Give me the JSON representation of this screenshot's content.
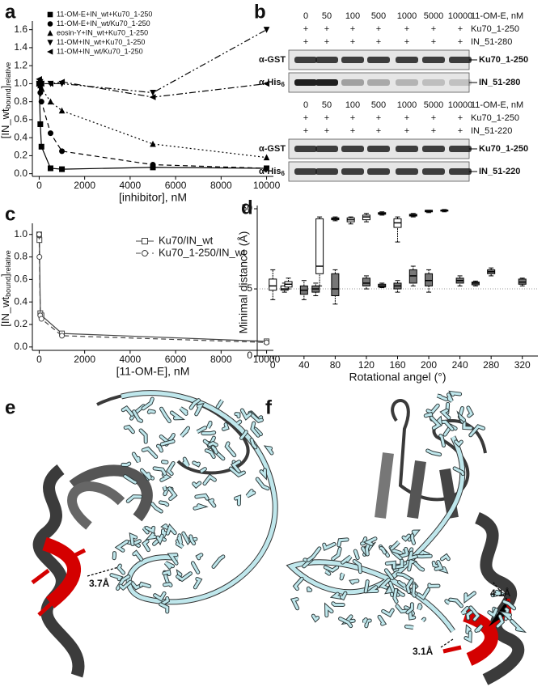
{
  "panel_labels": [
    "a",
    "b",
    "c",
    "d",
    "e",
    "f"
  ],
  "chart_data": [
    {
      "type": "scatter",
      "x_label": "[inhibitor], nM",
      "y_label": [
        "[IN_wt",
        "bound",
        "]",
        "relative"
      ],
      "x": [
        0,
        50,
        100,
        500,
        1000,
        5000,
        10000
      ],
      "xlim": [
        -300,
        10300
      ],
      "xticks": [
        0,
        2000,
        4000,
        6000,
        8000,
        10000
      ],
      "ylim": [
        -0.03,
        1.66
      ],
      "yticks": [
        {
          "value": 0,
          "label": "0.0"
        },
        0.2,
        0.4,
        0.6,
        0.8,
        {
          "value": 1,
          "label": "1.0"
        },
        1.2,
        1.4,
        1.6
      ],
      "legend": "top-left",
      "series": [
        {
          "name": "11-OM-E+IN_wt+Ku70_1-250",
          "color": "#000000",
          "marker": "square",
          "line": "solid",
          "values": [
            1.0,
            0.55,
            0.3,
            0.06,
            0.05,
            0.07,
            0.06
          ]
        },
        {
          "name": "11-OM-E+IN_wt/Ku70_1-250",
          "color": "#000000",
          "marker": "circle",
          "line": "dashed",
          "values": [
            1.0,
            0.9,
            0.8,
            0.45,
            0.25,
            0.1,
            0.06
          ]
        },
        {
          "name": "eosin-Y+IN_wt+Ku70_1-250",
          "color": "#000000",
          "marker": "triangle-up",
          "line": "dotted",
          "values": [
            1.0,
            0.98,
            0.95,
            0.8,
            0.7,
            0.33,
            0.18
          ]
        },
        {
          "name": "11-OM+IN_wt+Ku70_1-250",
          "color": "#000000",
          "marker": "triangle-down",
          "line": "dashdotdot",
          "values": [
            1.0,
            1.02,
            1.0,
            1.0,
            1.0,
            0.9,
            1.6
          ]
        },
        {
          "name": "11-OM+IN_wt/Ku70_1-250",
          "color": "#000000",
          "marker": "triangle-left",
          "line": "dashdot",
          "values": [
            1.05,
            1.0,
            1.0,
            1.0,
            1.02,
            0.85,
            1.0
          ]
        }
      ]
    },
    {
      "type": "line",
      "x_label": "[11-OM-E], nM",
      "y_label": [
        "[IN_wt",
        "bound",
        "]",
        "relative"
      ],
      "x": [
        0,
        10,
        50,
        100,
        1000,
        10000
      ],
      "xlim": [
        -300,
        10300
      ],
      "xticks": [
        0,
        2000,
        4000,
        6000,
        8000,
        10000
      ],
      "ylim": [
        -0.03,
        1.07
      ],
      "yticks": [
        {
          "value": 0,
          "label": "0.0"
        },
        0.2,
        0.4,
        0.6,
        0.8,
        {
          "value": 1,
          "label": "1.0"
        }
      ],
      "legend": "top-right",
      "series": [
        {
          "name": "Ku70/IN_wt",
          "color": "#444444",
          "marker": "square",
          "fill": "#ffffff",
          "line": "solid",
          "values": [
            1.0,
            0.95,
            0.3,
            0.28,
            0.12,
            0.05
          ]
        },
        {
          "name": "Ku70_1-250/IN_wt",
          "color": "#444444",
          "marker": "circle",
          "fill": "#ffffff",
          "line": "dashed",
          "values": [
            1.0,
            0.8,
            0.28,
            0.25,
            0.1,
            0.04
          ]
        }
      ]
    },
    {
      "type": "box",
      "x_label": "Rotational angel (°)",
      "y_label": "Minimal distance (Å)",
      "xlim": [
        -20,
        340
      ],
      "xticks": [
        0,
        40,
        80,
        120,
        160,
        200,
        240,
        280,
        320
      ],
      "ylim": [
        0,
        50
      ],
      "yticks": [
        0,
        5,
        50
      ],
      "yscale": "symlog",
      "reference_line": 5,
      "series": [
        {
          "color": "#ffffff",
          "x": [
            0,
            15,
            20,
            60,
            80,
            100,
            120,
            140,
            160,
            180,
            200,
            220
          ],
          "min": [
            3.5,
            4.5,
            5,
            5.5,
            36,
            33,
            35,
            42,
            20,
            40,
            45,
            46
          ],
          "q1": [
            4.8,
            4.8,
            5.3,
            8,
            37,
            35,
            37,
            43,
            30,
            41,
            46,
            47
          ],
          "median": [
            5.5,
            5,
            5.8,
            10,
            38,
            37,
            40,
            44,
            34,
            42,
            47,
            48
          ],
          "q3": [
            6.8,
            5.5,
            6.3,
            38,
            39,
            39,
            42,
            45,
            38,
            43,
            48,
            48
          ],
          "max": [
            9,
            6,
            7,
            40,
            40,
            40,
            44,
            46,
            40,
            44,
            48,
            49
          ]
        },
        {
          "color": "#777777",
          "x": [
            40,
            55,
            80,
            120,
            140,
            160,
            180,
            200,
            240,
            260,
            280,
            320
          ],
          "min": [
            3.5,
            4,
            3,
            5,
            5.2,
            4.5,
            5.5,
            4.5,
            5.5,
            5.5,
            7.5,
            5.5
          ],
          "q1": [
            4.2,
            4.5,
            4,
            5.5,
            5.3,
            5,
            6,
            5.5,
            6,
            5.7,
            8,
            5.8
          ],
          "median": [
            4.8,
            5,
            5,
            6,
            5.5,
            5.5,
            7.5,
            6.5,
            6.5,
            6,
            8.5,
            6.2
          ],
          "q3": [
            5.5,
            5.5,
            8,
            7,
            5.8,
            6,
            9,
            8,
            7,
            6.2,
            9,
            6.8
          ],
          "max": [
            6.5,
            6,
            9,
            7.5,
            6,
            6.5,
            10,
            9,
            7.5,
            6.4,
            9.5,
            7
          ]
        }
      ]
    }
  ],
  "blot": {
    "blocks": [
      {
        "concentrations": [
          0,
          50,
          100,
          500,
          1000,
          5000,
          10000
        ],
        "treatment": "11-OM-E, nM",
        "rows": [
          {
            "signs": [
              "+",
              "+",
              "+",
              "+",
              "+",
              "+",
              "+"
            ],
            "label": "Ku70_1-250"
          },
          {
            "signs": [
              "+",
              "+",
              "+",
              "+",
              "+",
              "+",
              "+"
            ],
            "label": "IN_51-280"
          }
        ],
        "antibodies": [
          {
            "name": "α-GST",
            "band": "Ku70_1-250"
          },
          {
            "name": "α-His",
            "sub": "6",
            "band": "IN_51-280"
          }
        ]
      },
      {
        "concentrations": [
          0,
          50,
          100,
          500,
          1000,
          5000,
          10000
        ],
        "treatment": "11-OM-E, nM",
        "rows": [
          {
            "signs": [
              "+",
              "+",
              "+",
              "+",
              "+",
              "+",
              "+"
            ],
            "label": "Ku70_1-250"
          },
          {
            "signs": [
              "+",
              "+",
              "+",
              "+",
              "+",
              "+",
              "+"
            ],
            "label": "IN_51-220"
          }
        ],
        "antibodies": [
          {
            "name": "α-GST",
            "band": "Ku70_1-250"
          },
          {
            "name": "α-His",
            "sub": "6",
            "band": "IN_51-220"
          }
        ]
      }
    ]
  },
  "structures": {
    "e": {
      "distances": [
        "3.7Å"
      ]
    },
    "f": {
      "distances": [
        "4.1Å",
        "3.1Å"
      ]
    }
  }
}
